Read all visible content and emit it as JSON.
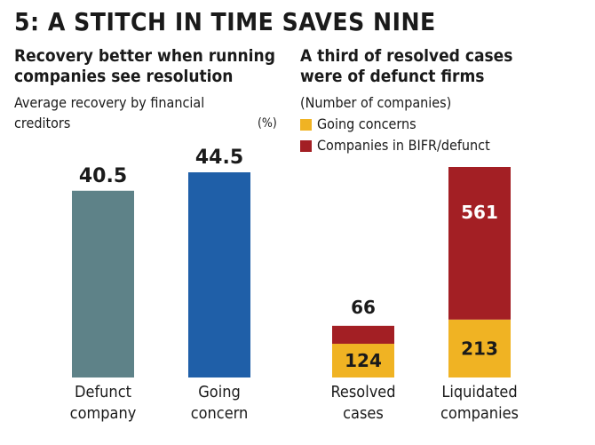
{
  "title": "5: A STITCH IN TIME SAVES NINE",
  "left": {
    "title_line1": "Recovery better when running",
    "title_line2": "companies see resolution",
    "subtitle_line1": "Average recovery by financial",
    "subtitle_line2": "creditors",
    "unit": "(%)"
  },
  "right": {
    "title_line1": "A third of resolved cases",
    "title_line2": "were of defunct firms",
    "subtitle": "(Number of companies)",
    "legend": [
      {
        "label": "Going concerns",
        "color": "#f0b323"
      },
      {
        "label": "Companies in BIFR/defunct",
        "color": "#a31f24"
      }
    ]
  },
  "chart_data": [
    {
      "type": "bar",
      "categories": [
        [
          "Defunct",
          "company"
        ],
        [
          "Going",
          "concern"
        ]
      ],
      "values": [
        40.5,
        44.5
      ],
      "value_labels": [
        "40.5",
        "44.5"
      ],
      "colors": [
        "#5e8288",
        "#1f5fa8"
      ],
      "ylabel": "(%)"
    },
    {
      "type": "bar",
      "stacked": true,
      "categories": [
        [
          "Resolved",
          "cases"
        ],
        [
          "Liquidated",
          "companies"
        ]
      ],
      "series": [
        {
          "name": "Going concerns",
          "values": [
            124,
            213
          ],
          "color": "#f0b323"
        },
        {
          "name": "Companies in BIFR/defunct",
          "values": [
            66,
            561
          ],
          "color": "#a31f24"
        }
      ]
    }
  ]
}
